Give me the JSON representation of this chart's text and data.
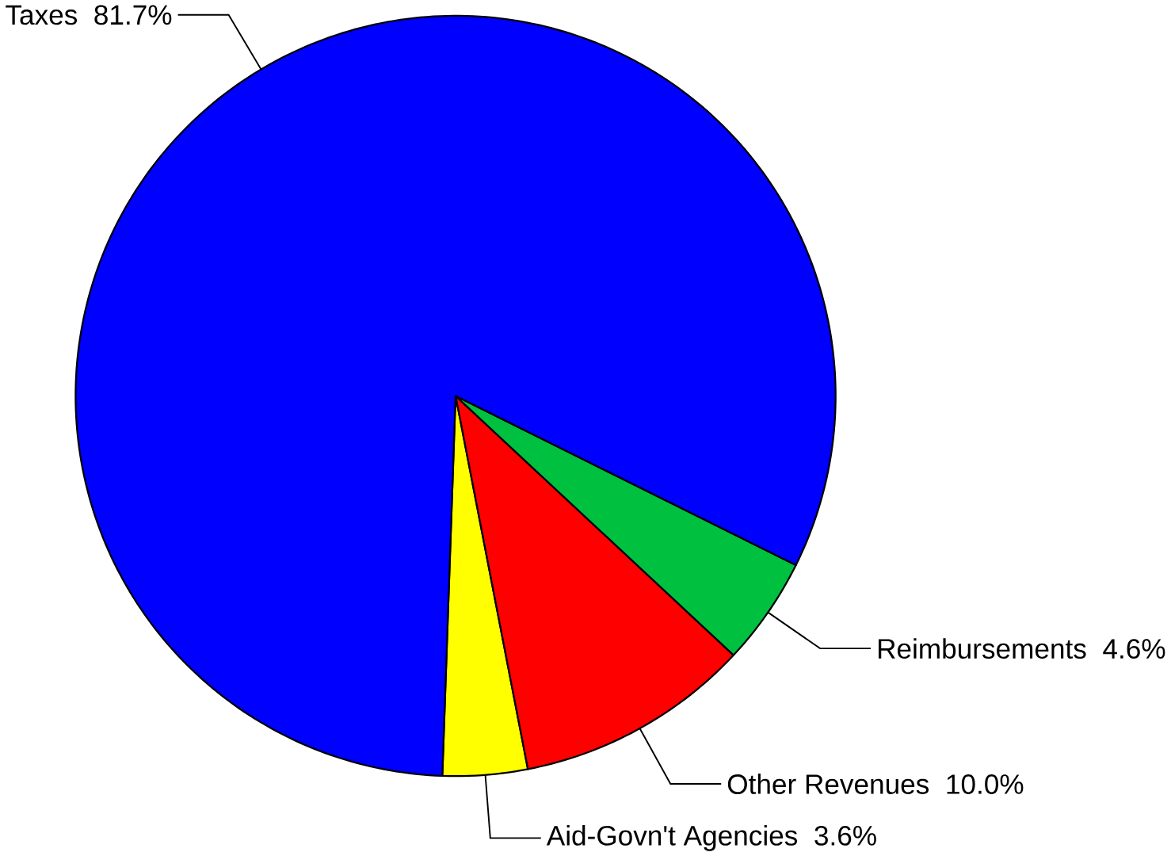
{
  "chart_data": {
    "type": "pie",
    "categories": [
      "Taxes",
      "Reimbursements",
      "Other Revenues",
      "Aid-Govn't Agencies"
    ],
    "values": [
      81.7,
      4.6,
      10.0,
      3.6
    ],
    "value_labels": [
      "81.7%",
      "4.6%",
      "10.0%",
      "3.6%"
    ],
    "colors": [
      "#0000ff",
      "#00c040",
      "#ff0000",
      "#ffff00"
    ]
  }
}
